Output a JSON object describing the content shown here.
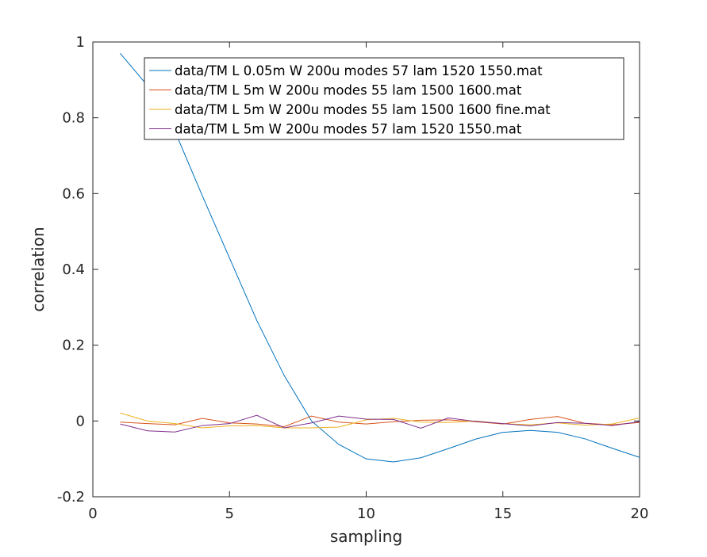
{
  "chart_data": {
    "type": "line",
    "title": "",
    "xlabel": "sampling",
    "ylabel": "correlation",
    "xlim": [
      0,
      20
    ],
    "ylim": [
      -0.2,
      1
    ],
    "xticks": [
      0,
      5,
      10,
      15,
      20
    ],
    "yticks": [
      -0.2,
      0,
      0.2,
      0.4,
      0.6,
      0.8,
      1
    ],
    "ytick_labels": [
      "-0.2",
      "0",
      "0.2",
      "0.4",
      "0.6",
      "0.8",
      "1"
    ],
    "grid": false,
    "legend_position": "top-right",
    "x": [
      1,
      2,
      3,
      4,
      5,
      6,
      7,
      8,
      9,
      10,
      11,
      12,
      13,
      14,
      15,
      16,
      17,
      18,
      19,
      20
    ],
    "series": [
      {
        "name": "data/TM L 0.05m W 200u modes 57 lam 1520 1550.mat",
        "color": "#0072BD",
        "values": [
          0.97,
          0.885,
          0.765,
          0.595,
          0.43,
          0.265,
          0.12,
          0.0,
          -0.062,
          -0.1,
          -0.108,
          -0.097,
          -0.073,
          -0.048,
          -0.03,
          -0.025,
          -0.03,
          -0.047,
          -0.072,
          -0.096
        ]
      },
      {
        "name": "data/TM L 5m W 200u modes 55 lam 1500 1600.mat",
        "color": "#D95319",
        "values": [
          -0.003,
          -0.007,
          -0.01,
          0.007,
          -0.005,
          -0.008,
          -0.015,
          0.013,
          -0.003,
          -0.008,
          -0.002,
          0.002,
          0.003,
          -0.002,
          -0.008,
          0.004,
          0.012,
          -0.006,
          -0.01,
          -0.004
        ]
      },
      {
        "name": "data/TM L 5m W 200u modes 55 lam 1500 1600 fine.mat",
        "color": "#EDB120",
        "values": [
          0.021,
          0.0,
          -0.007,
          -0.018,
          -0.013,
          -0.012,
          -0.018,
          -0.018,
          -0.016,
          0.003,
          0.007,
          -0.003,
          -0.004,
          0.0,
          -0.007,
          -0.01,
          -0.005,
          -0.011,
          -0.008,
          0.008
        ]
      },
      {
        "name": "data/TM L 5m W 200u modes 57 lam 1520 1550.mat",
        "color": "#7E2F8E",
        "values": [
          -0.008,
          -0.026,
          -0.029,
          -0.012,
          -0.007,
          0.015,
          -0.018,
          -0.005,
          0.013,
          0.005,
          0.004,
          -0.019,
          0.008,
          -0.001,
          -0.007,
          -0.013,
          -0.004,
          -0.006,
          -0.012,
          -0.002
        ]
      }
    ]
  }
}
